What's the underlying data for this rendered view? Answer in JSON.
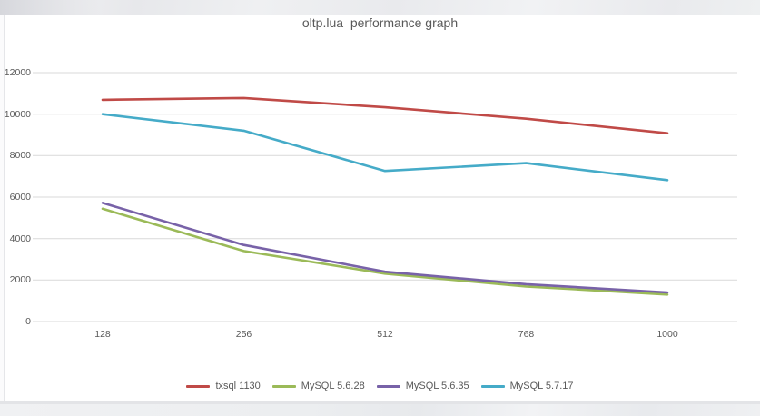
{
  "chart_data": {
    "type": "line",
    "title": "oltp.lua  performance graph",
    "categories": [
      "128",
      "256",
      "512",
      "768",
      "1000"
    ],
    "xlabel": "",
    "ylabel": "",
    "ylim": [
      0,
      12000
    ],
    "yticks": [
      0,
      2000,
      4000,
      6000,
      8000,
      10000,
      12000
    ],
    "ytick_labels": [
      "0",
      "2000",
      "4000",
      "6000",
      "8000",
      "10000",
      "12000"
    ],
    "grid": true,
    "legend_position": "bottom",
    "text_color": "#595959",
    "gridline_color": "#d9d9d9",
    "series": [
      {
        "name": "txsql 1130",
        "color": "#c04a47",
        "values": [
          10690,
          10780,
          10330,
          9780,
          9080
        ]
      },
      {
        "name": "MySQL 5.6.28",
        "color": "#9bba58",
        "values": [
          5440,
          3400,
          2310,
          1690,
          1300
        ]
      },
      {
        "name": "MySQL 5.6.35",
        "color": "#7862a8",
        "values": [
          5720,
          3690,
          2400,
          1800,
          1400
        ]
      },
      {
        "name": "MySQL 5.7.17",
        "color": "#45abc8",
        "values": [
          10000,
          9200,
          7260,
          7640,
          6820
        ]
      }
    ]
  }
}
